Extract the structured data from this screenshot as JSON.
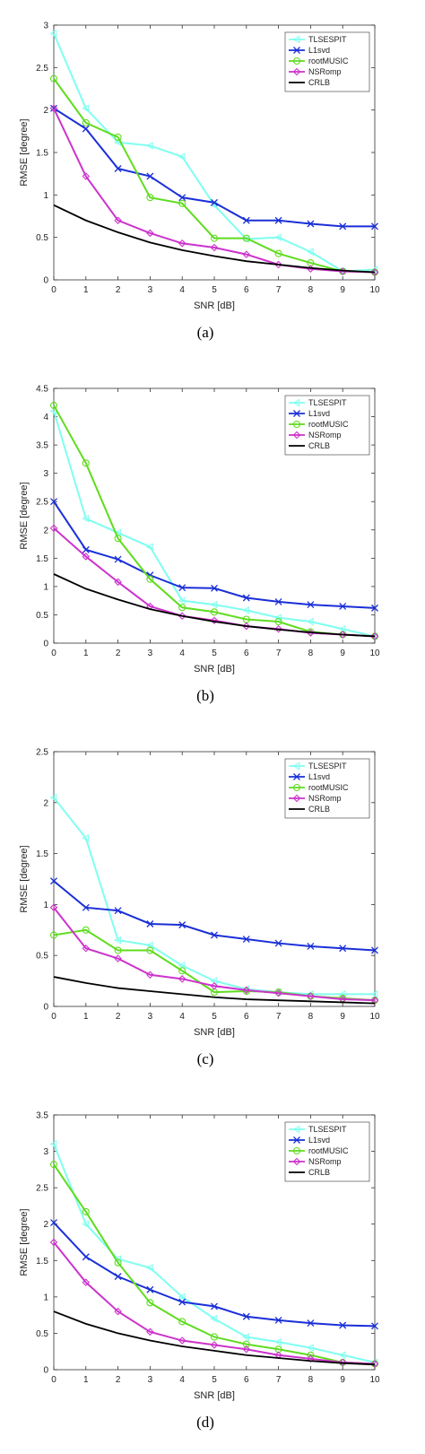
{
  "charts": [
    {
      "caption": "(a)",
      "chart_data": {
        "type": "line",
        "x": [
          0,
          1,
          2,
          3,
          4,
          5,
          6,
          7,
          8,
          9,
          10
        ],
        "xlabel": "SNR [dB]",
        "ylabel": "RMSE [degree]",
        "xlim": [
          0,
          10
        ],
        "ylim": [
          0,
          3
        ],
        "yticks": [
          "0",
          "0.5",
          "1",
          "1.5",
          "2",
          "2.5",
          "3"
        ],
        "xticks": [
          "0",
          "1",
          "2",
          "3",
          "4",
          "5",
          "6",
          "7",
          "8",
          "9",
          "10"
        ],
        "legend_position": "top-right",
        "series": [
          {
            "name": "TLSESPIT",
            "color": "#7fffef",
            "marker": "triangle",
            "values": [
              2.9,
              2.02,
              1.62,
              1.58,
              1.45,
              0.88,
              0.48,
              0.5,
              0.33,
              0.1,
              0.12
            ]
          },
          {
            "name": "L1svd",
            "color": "#1a2fd8",
            "marker": "x",
            "values": [
              2.02,
              1.78,
              1.31,
              1.22,
              0.97,
              0.91,
              0.7,
              0.7,
              0.66,
              0.63,
              0.63
            ]
          },
          {
            "name": "rootMUSIC",
            "color": "#5fdc1e",
            "marker": "circle",
            "values": [
              2.37,
              1.85,
              1.68,
              0.97,
              0.9,
              0.49,
              0.49,
              0.31,
              0.2,
              0.1,
              0.09
            ]
          },
          {
            "name": "NSRomp",
            "color": "#cc33cc",
            "marker": "diamond",
            "values": [
              2.02,
              1.22,
              0.7,
              0.55,
              0.43,
              0.38,
              0.3,
              0.18,
              0.13,
              0.1,
              0.09
            ]
          },
          {
            "name": "CRLB",
            "color": "#000000",
            "marker": "none",
            "values": [
              0.88,
              0.7,
              0.56,
              0.44,
              0.35,
              0.28,
              0.22,
              0.18,
              0.14,
              0.11,
              0.09
            ]
          }
        ]
      }
    },
    {
      "caption": "(b)",
      "chart_data": {
        "type": "line",
        "x": [
          0,
          1,
          2,
          3,
          4,
          5,
          6,
          7,
          8,
          9,
          10
        ],
        "xlabel": "SNR [dB]",
        "ylabel": "RMSE [degree]",
        "xlim": [
          0,
          10
        ],
        "ylim": [
          0,
          4.5
        ],
        "yticks": [
          "0",
          "0.5",
          "1",
          "1.5",
          "2",
          "2.5",
          "3",
          "3.5",
          "4",
          "4.5"
        ],
        "xticks": [
          "0",
          "1",
          "2",
          "3",
          "4",
          "5",
          "6",
          "7",
          "8",
          "9",
          "10"
        ],
        "legend_position": "top-right",
        "series": [
          {
            "name": "TLSESPIT",
            "color": "#7fffef",
            "marker": "triangle",
            "values": [
              4.1,
              2.2,
              1.95,
              1.7,
              0.75,
              0.68,
              0.58,
              0.45,
              0.38,
              0.25,
              0.12
            ]
          },
          {
            "name": "L1svd",
            "color": "#1a2fd8",
            "marker": "x",
            "values": [
              2.5,
              1.65,
              1.48,
              1.2,
              0.98,
              0.97,
              0.8,
              0.73,
              0.68,
              0.65,
              0.62
            ]
          },
          {
            "name": "rootMUSIC",
            "color": "#5fdc1e",
            "marker": "circle",
            "values": [
              4.2,
              3.18,
              1.85,
              1.13,
              0.63,
              0.55,
              0.42,
              0.38,
              0.2,
              0.15,
              0.12
            ]
          },
          {
            "name": "NSRomp",
            "color": "#cc33cc",
            "marker": "diamond",
            "values": [
              2.03,
              1.53,
              1.08,
              0.65,
              0.48,
              0.4,
              0.3,
              0.25,
              0.18,
              0.15,
              0.12
            ]
          },
          {
            "name": "CRLB",
            "color": "#000000",
            "marker": "none",
            "values": [
              1.22,
              0.96,
              0.77,
              0.6,
              0.48,
              0.38,
              0.3,
              0.24,
              0.19,
              0.15,
              0.12
            ]
          }
        ]
      }
    },
    {
      "caption": "(c)",
      "chart_data": {
        "type": "line",
        "x": [
          0,
          1,
          2,
          3,
          4,
          5,
          6,
          7,
          8,
          9,
          10
        ],
        "xlabel": "SNR [dB]",
        "ylabel": "RMSE [degree]",
        "xlim": [
          0,
          10
        ],
        "ylim": [
          0,
          2.5
        ],
        "yticks": [
          "0",
          "0.5",
          "1",
          "1.5",
          "2",
          "2.5"
        ],
        "xticks": [
          "0",
          "1",
          "2",
          "3",
          "4",
          "5",
          "6",
          "7",
          "8",
          "9",
          "10"
        ],
        "legend_position": "top-right",
        "series": [
          {
            "name": "TLSESPIT",
            "color": "#7fffef",
            "marker": "triangle",
            "values": [
              2.05,
              1.65,
              0.65,
              0.6,
              0.4,
              0.25,
              0.17,
              0.14,
              0.12,
              0.12,
              0.12
            ]
          },
          {
            "name": "L1svd",
            "color": "#1a2fd8",
            "marker": "x",
            "values": [
              1.23,
              0.97,
              0.94,
              0.81,
              0.8,
              0.7,
              0.66,
              0.62,
              0.59,
              0.57,
              0.55
            ]
          },
          {
            "name": "rootMUSIC",
            "color": "#5fdc1e",
            "marker": "circle",
            "values": [
              0.7,
              0.75,
              0.55,
              0.55,
              0.35,
              0.14,
              0.15,
              0.14,
              0.1,
              0.08,
              0.06
            ]
          },
          {
            "name": "NSRomp",
            "color": "#cc33cc",
            "marker": "diamond",
            "values": [
              0.97,
              0.57,
              0.47,
              0.31,
              0.27,
              0.2,
              0.16,
              0.13,
              0.1,
              0.07,
              0.06
            ]
          },
          {
            "name": "CRLB",
            "color": "#000000",
            "marker": "none",
            "values": [
              0.29,
              0.23,
              0.18,
              0.15,
              0.12,
              0.09,
              0.07,
              0.06,
              0.05,
              0.04,
              0.03
            ]
          }
        ]
      }
    },
    {
      "caption": "(d)",
      "chart_data": {
        "type": "line",
        "x": [
          0,
          1,
          2,
          3,
          4,
          5,
          6,
          7,
          8,
          9,
          10
        ],
        "xlabel": "SNR [dB]",
        "ylabel": "RMSE [degree]",
        "xlim": [
          0,
          10
        ],
        "ylim": [
          0,
          3.5
        ],
        "yticks": [
          "0",
          "0.5",
          "1",
          "1.5",
          "2",
          "2.5",
          "3",
          "3.5"
        ],
        "xticks": [
          "0",
          "1",
          "2",
          "3",
          "4",
          "5",
          "6",
          "7",
          "8",
          "9",
          "10"
        ],
        "legend_position": "top-right",
        "series": [
          {
            "name": "TLSESPIT",
            "color": "#7fffef",
            "marker": "triangle",
            "values": [
              3.1,
              2.0,
              1.52,
              1.4,
              1.0,
              0.7,
              0.45,
              0.38,
              0.3,
              0.2,
              0.1
            ]
          },
          {
            "name": "L1svd",
            "color": "#1a2fd8",
            "marker": "x",
            "values": [
              2.02,
              1.55,
              1.28,
              1.1,
              0.93,
              0.87,
              0.73,
              0.68,
              0.64,
              0.61,
              0.6
            ]
          },
          {
            "name": "rootMUSIC",
            "color": "#5fdc1e",
            "marker": "circle",
            "values": [
              2.82,
              2.17,
              1.47,
              0.92,
              0.66,
              0.45,
              0.35,
              0.28,
              0.2,
              0.1,
              0.08
            ]
          },
          {
            "name": "NSRomp",
            "color": "#cc33cc",
            "marker": "diamond",
            "values": [
              1.75,
              1.2,
              0.8,
              0.52,
              0.4,
              0.34,
              0.28,
              0.2,
              0.15,
              0.1,
              0.08
            ]
          },
          {
            "name": "CRLB",
            "color": "#000000",
            "marker": "none",
            "values": [
              0.8,
              0.63,
              0.5,
              0.4,
              0.32,
              0.26,
              0.2,
              0.16,
              0.12,
              0.09,
              0.07
            ]
          }
        ]
      }
    }
  ]
}
